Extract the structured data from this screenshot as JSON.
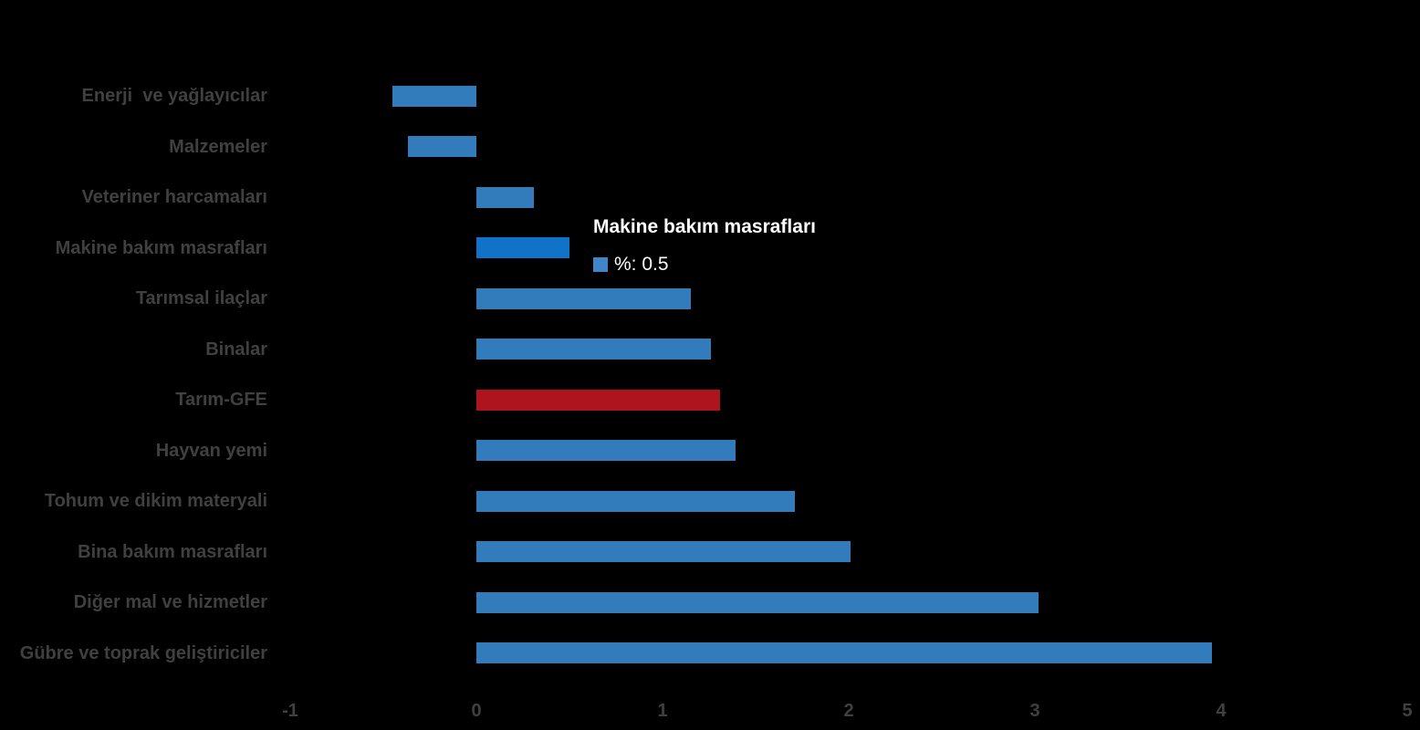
{
  "chart_data": {
    "type": "bar",
    "orientation": "horizontal",
    "title": "",
    "xlabel": "",
    "ylabel": "",
    "grid": false,
    "legend": false,
    "xlim": [
      -1,
      5
    ],
    "xticks": [
      "-1",
      "0",
      "1",
      "2",
      "3",
      "4",
      "5"
    ],
    "xtick_values": [
      -1,
      0,
      1,
      2,
      3,
      4,
      5
    ],
    "categories": [
      "Enerji  ve yağlayıcılar",
      "Malzemeler",
      "Veteriner harcamaları",
      "Makine bakım masrafları",
      "Tarımsal ilaçlar",
      "Binalar",
      "Tarım-GFE",
      "Hayvan yemi",
      "Tohum ve dikim materyali",
      "Bina bakım masrafları",
      "Diğer mal ve hizmetler",
      "Gübre ve toprak geliştiriciler"
    ],
    "values": [
      -0.45,
      -0.37,
      0.31,
      0.5,
      1.15,
      1.26,
      1.31,
      1.39,
      1.71,
      2.01,
      3.02,
      3.95
    ],
    "bar_states": [
      "normal",
      "normal",
      "normal",
      "hover",
      "normal",
      "normal",
      "highlight",
      "normal",
      "normal",
      "normal",
      "normal",
      "normal"
    ],
    "colors": {
      "background": "#000000",
      "bar_default": "#337CBB",
      "bar_hover": "#1173C8",
      "bar_highlight": "#AE141E",
      "label_text": "#404040",
      "axis_text": "#404040",
      "tooltip_text": "#FFFFFF",
      "tooltip_swatch": "#4185C6"
    },
    "tooltip": {
      "target_category": "Makine bakım masrafları",
      "title": "Makine bakım masrafları",
      "value_text": "%: 0.5"
    }
  }
}
